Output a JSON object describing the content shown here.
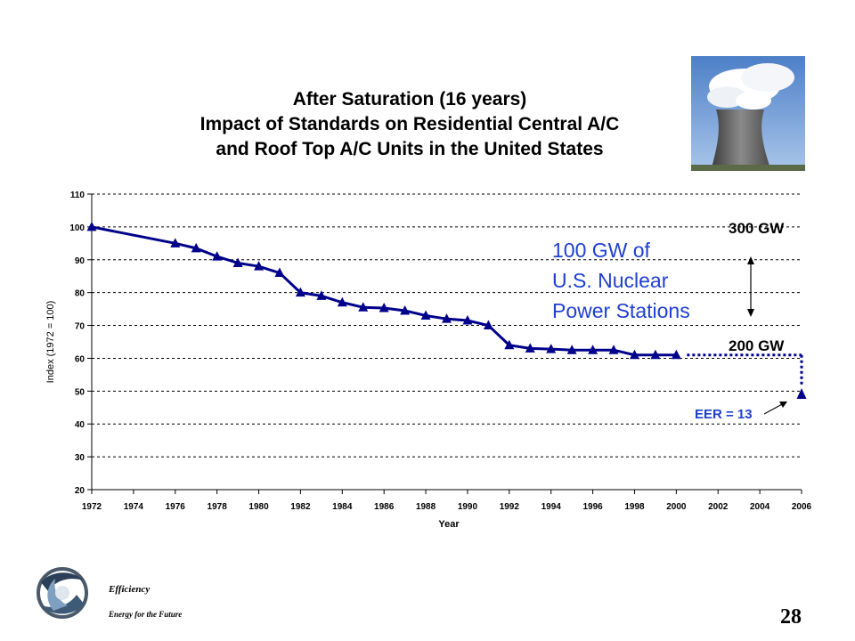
{
  "chart_data": {
    "type": "line",
    "title": [
      "After Saturation (16 years)",
      "Impact of Standards on Residential Central A/C",
      "and Roof Top A/C Units in the United States"
    ],
    "xlabel": "Year",
    "ylabel": "Index (1972 = 100)",
    "xlim": [
      1972,
      2006
    ],
    "ylim": [
      20,
      110
    ],
    "x_ticks": [
      "1972",
      "1974",
      "1976",
      "1978",
      "1980",
      "1982",
      "1984",
      "1986",
      "1988",
      "1990",
      "1992",
      "1994",
      "1996",
      "1998",
      "2000",
      "2002",
      "2004",
      "2006"
    ],
    "y_ticks": [
      "20",
      "30",
      "40",
      "50",
      "60",
      "70",
      "80",
      "90",
      "100",
      "110"
    ],
    "grid": "horizontal-dashed",
    "series": [
      {
        "color": "#00008b",
        "x": [
          1972,
          1976,
          1977,
          1978,
          1979,
          1980,
          1981,
          1982,
          1983,
          1984,
          1985,
          1986,
          1987,
          1988,
          1989,
          1990,
          1991,
          1992,
          1993,
          1994,
          1995,
          1996,
          1997,
          1998,
          1999,
          2000
        ],
        "y": [
          100,
          95,
          93.5,
          91,
          89,
          88,
          86,
          80,
          79,
          77,
          75.5,
          75.3,
          74.5,
          73,
          72,
          71.5,
          70,
          64,
          63,
          62.8,
          62.5,
          62.5,
          62.5,
          61,
          61,
          61
        ]
      }
    ],
    "projection": {
      "color": "#00008b",
      "dotted_from": [
        2000,
        61
      ],
      "dotted_corner": [
        2006,
        61
      ],
      "point": [
        2006,
        49
      ]
    },
    "annotations": {
      "gw300": "300 GW",
      "gw200": "200 GW",
      "nuclear": [
        "100 GW of",
        "U.S. Nuclear",
        "Power Stations"
      ],
      "eer": "EER = 13"
    },
    "colors": {
      "line": "#00008b",
      "nuclear_text": "#1f3fd0",
      "eer_text": "#1f3fd0"
    }
  },
  "footer": {
    "brand": "Efficiency",
    "tagline": "Energy for the Future",
    "page_number": "28"
  },
  "photo_icon": "cooling-tower-photo"
}
